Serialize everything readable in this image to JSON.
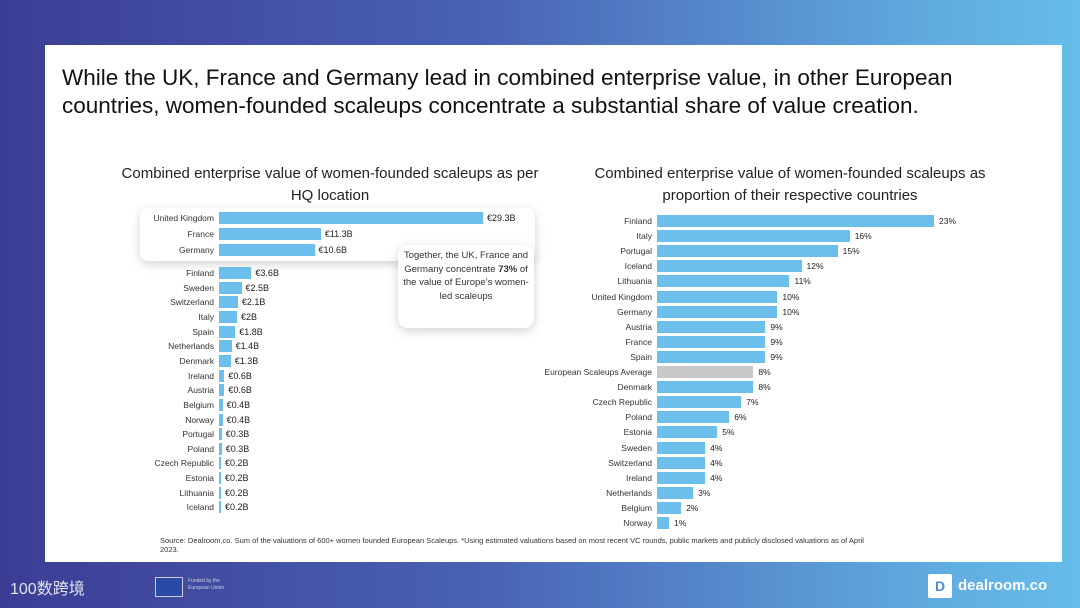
{
  "title": "While the UK, France and Germany lead in combined enterprise value, in other European countries, women-founded scaleups concentrate a substantial share of value creation.",
  "chart_data": [
    {
      "type": "bar",
      "orientation": "horizontal",
      "title": "Combined enterprise  value of women-founded  scaleups as per HQ location",
      "unit": "€B",
      "categories": [
        "United Kingdom",
        "France",
        "Germany",
        "Finland",
        "Sweden",
        "Switzerland",
        "Italy",
        "Spain",
        "Netherlands",
        "Denmark",
        "Ireland",
        "Austria",
        "Belgium",
        "Norway",
        "Portugal",
        "Poland",
        "Czech Republic",
        "Estonia",
        "Lithuania",
        "Iceland"
      ],
      "values": [
        29.3,
        11.3,
        10.6,
        3.6,
        2.5,
        2.1,
        2,
        1.8,
        1.4,
        1.3,
        0.6,
        0.6,
        0.4,
        0.4,
        0.3,
        0.3,
        0.2,
        0.2,
        0.2,
        0.2
      ],
      "labels": [
        "€29.3B",
        "€11.3B",
        "€10.6B",
        "€3.6B",
        "€2.5B",
        "€2.1B",
        "€2B",
        "€1.8B",
        "€1.4B",
        "€1.3B",
        "€0.6B",
        "€0.6B",
        "€0.4B",
        "€0.4B",
        "€0.3B",
        "€0.3B",
        "€0.2B",
        "€0.2B",
        "€0.2B",
        "€0.2B"
      ],
      "bar_color": "#6bbfea"
    },
    {
      "type": "bar",
      "orientation": "horizontal",
      "title": "Combined enterprise  value of women-founded  scaleups as proportion of their respective  countries",
      "unit": "%",
      "categories": [
        "Finland",
        "Italy",
        "Portugal",
        "Iceland",
        "Lithuania",
        "United Kingdom",
        "Germany",
        "Austria",
        "France",
        "Spain",
        "European Scaleups Average",
        "Denmark",
        "Czech Republic",
        "Poland",
        "Estonia",
        "Sweden",
        "Switzerland",
        "Ireland",
        "Netherlands",
        "Belgium",
        "Norway"
      ],
      "values": [
        23,
        16,
        15,
        12,
        11,
        10,
        10,
        9,
        9,
        9,
        8,
        8,
        7,
        6,
        5,
        4,
        4,
        4,
        3,
        2,
        1
      ],
      "labels": [
        "23%",
        "16%",
        "15%",
        "12%",
        "11%",
        "10%",
        "10%",
        "9%",
        "9%",
        "9%",
        "8%",
        "8%",
        "7%",
        "6%",
        "5%",
        "4%",
        "4%",
        "4%",
        "3%",
        "2%",
        "1%"
      ],
      "bar_color": "#6bbfea",
      "highlight_color": "#c8c8c8",
      "highlight_index": 10
    }
  ],
  "callout": {
    "pre": "Together,  the UK, France and Germany concentrate ",
    "bold": "73%",
    "post": " of the value of Europe’s women-led scaleups"
  },
  "source": "Source: Dealroom.co. Sum of the valuations of 600+ women founded European Scaleups. *Using estimated valuations based on most recent VC rounds, public markets and publicly disclosed valuations as of April 2023.",
  "footer": {
    "eu_text": "Funded by the European Union",
    "brand": "dealroom.co",
    "watermark": "100数跨境"
  }
}
